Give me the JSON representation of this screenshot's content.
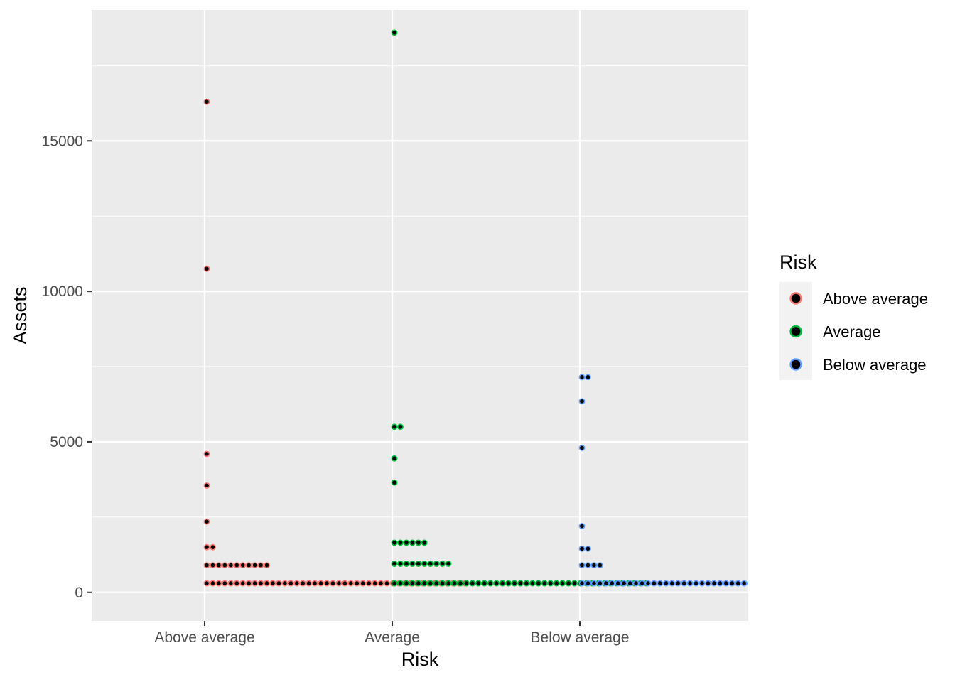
{
  "chart_data": {
    "type": "scatter",
    "subtype": "dotplot",
    "xlabel": "Risk",
    "ylabel": "Assets",
    "categories": [
      "Above average",
      "Average",
      "Below average"
    ],
    "yticks": [
      0,
      5000,
      10000,
      15000
    ],
    "ytick_labels": [
      "0",
      "5000",
      "10000",
      "15000"
    ],
    "ylim": [
      -950,
      19350
    ],
    "grid": true,
    "background": "#ebebeb",
    "legend": {
      "title": "Risk",
      "position": "right",
      "entries": [
        "Above average",
        "Average",
        "Below average"
      ]
    },
    "bin_width": 300,
    "max_stack_visible": 29,
    "series": [
      {
        "name": "Above average",
        "color": "#f8766d",
        "bins": [
          {
            "y": 300,
            "count": 44
          },
          {
            "y": 900,
            "count": 11
          },
          {
            "y": 1500,
            "count": 2
          },
          {
            "y": 2350,
            "count": 1
          },
          {
            "y": 3550,
            "count": 1
          },
          {
            "y": 4600,
            "count": 1
          },
          {
            "y": 10750,
            "count": 1
          },
          {
            "y": 16300,
            "count": 1
          }
        ]
      },
      {
        "name": "Average",
        "color": "#00ba38",
        "bins": [
          {
            "y": 300,
            "count": 43
          },
          {
            "y": 950,
            "count": 10
          },
          {
            "y": 1650,
            "count": 6
          },
          {
            "y": 3650,
            "count": 1
          },
          {
            "y": 4450,
            "count": 1
          },
          {
            "y": 5500,
            "count": 2
          },
          {
            "y": 18600,
            "count": 1
          }
        ]
      },
      {
        "name": "Below average",
        "color": "#619cff",
        "bins": [
          {
            "y": 300,
            "count": 40
          },
          {
            "y": 900,
            "count": 4
          },
          {
            "y": 1450,
            "count": 2
          },
          {
            "y": 2200,
            "count": 1
          },
          {
            "y": 4800,
            "count": 1
          },
          {
            "y": 6350,
            "count": 1
          },
          {
            "y": 7150,
            "count": 2
          }
        ]
      }
    ]
  }
}
